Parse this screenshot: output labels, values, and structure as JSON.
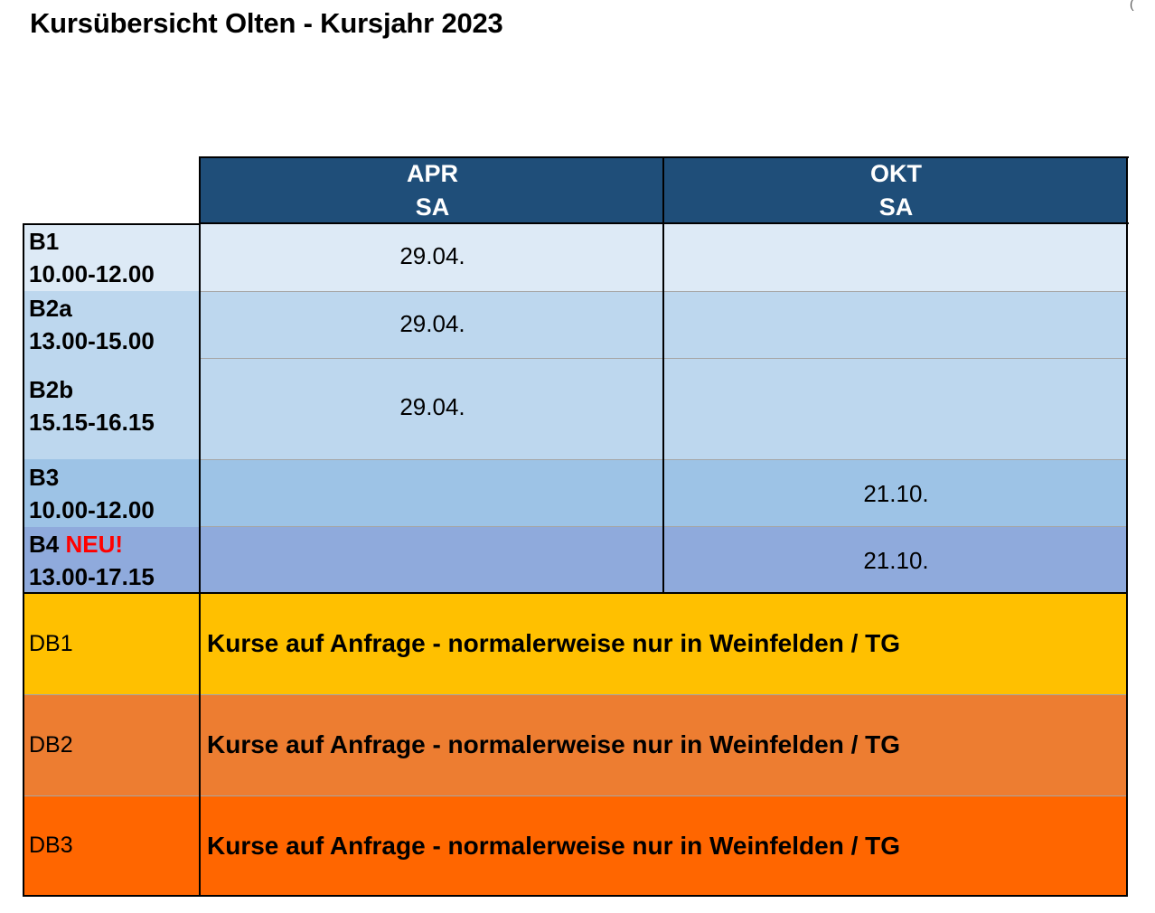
{
  "title": "Kursübersicht Olten - Kursjahr 2023",
  "corner_mark": "(",
  "columns": [
    {
      "month": "APR",
      "day": "SA"
    },
    {
      "month": "OKT",
      "day": "SA"
    }
  ],
  "rows": [
    {
      "code": "B1",
      "badge": "",
      "time": "10.00-12.00",
      "apr": "29.04.",
      "okt": "",
      "color": "#ddeaf6"
    },
    {
      "code": "B2a",
      "badge": "",
      "time": "13.00-15.00",
      "apr": "29.04.",
      "okt": "",
      "color": "#bdd7ee"
    },
    {
      "code": "B2b",
      "badge": "",
      "time": "15.15-16.15",
      "apr": "29.04.",
      "okt": "",
      "color": "#bdd7ee"
    },
    {
      "code": "B3",
      "badge": "",
      "time": "10.00-12.00",
      "apr": "",
      "okt": "21.10.",
      "color": "#9dc3e6"
    },
    {
      "code": "B4",
      "badge": "NEU!",
      "time": "13.00-17.15",
      "apr": "",
      "okt": "21.10.",
      "color": "#8faadc"
    }
  ],
  "db_rows": [
    {
      "code": "DB1",
      "note": "Kurse auf Anfrage - normalerweise nur in Weinfelden / TG",
      "color": "#ffc000"
    },
    {
      "code": "DB2",
      "note": "Kurse auf Anfrage - normalerweise nur in Weinfelden / TG",
      "color": "#ed7d31"
    },
    {
      "code": "DB3",
      "note": "Kurse auf Anfrage - normalerweise nur in Weinfelden / TG",
      "color": "#ff6600"
    }
  ],
  "colors": {
    "header": "#1f4e79",
    "badge": "#ff0000"
  }
}
